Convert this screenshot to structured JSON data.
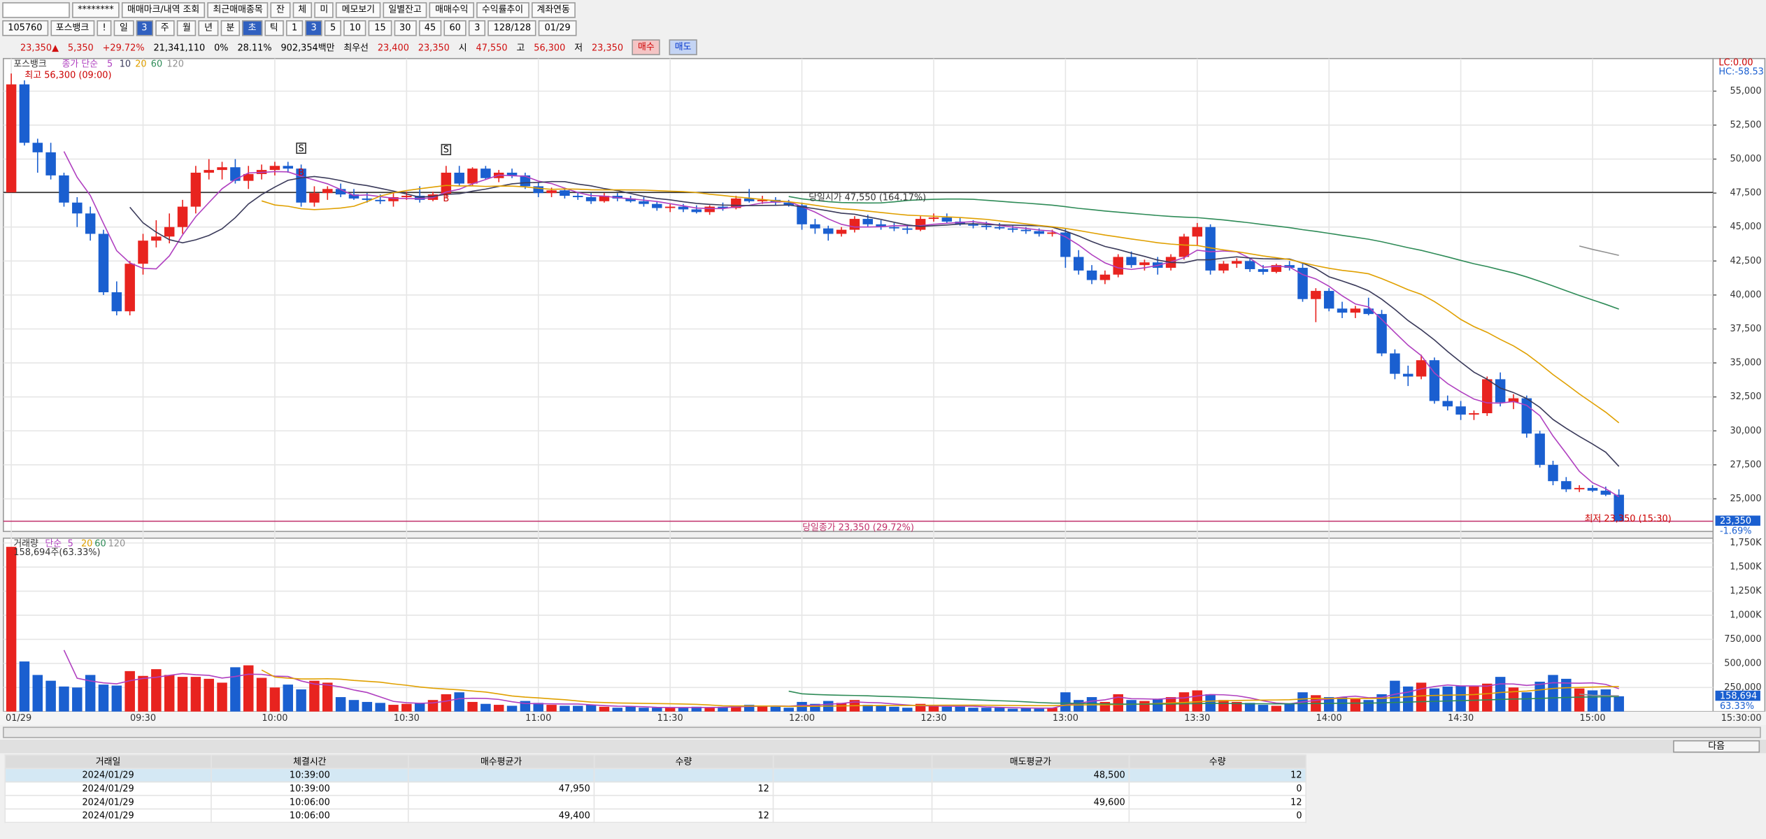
{
  "toolbar": {
    "row1": [
      "********",
      "매매마크/내역 조회",
      "최근매매종목",
      "잔",
      "체",
      "미",
      "메모보기",
      "일별잔고",
      "매매수익",
      "수익률추이",
      "계좌연동"
    ],
    "row2": [
      "105760",
      "포스뱅크",
      "!",
      "일",
      "3",
      "주",
      "월",
      "년",
      "분",
      "초",
      "틱",
      "1",
      "3",
      "5",
      "10",
      "15",
      "30",
      "45",
      "60",
      "3",
      "128/128",
      "01/29"
    ],
    "row2_selected": [
      4,
      9,
      12
    ]
  },
  "info_bar": [
    {
      "text": "23,350▲",
      "color": "#d01010"
    },
    {
      "text": "5,350",
      "color": "#d01010"
    },
    {
      "text": "+29.72%",
      "color": "#d01010"
    },
    {
      "text": "21,341,110",
      "color": "#000000"
    },
    {
      "text": "0%",
      "color": "#000000"
    },
    {
      "text": "28.11%",
      "color": "#000000"
    },
    {
      "text": "902,354백만",
      "color": "#000000"
    },
    {
      "text": "최우선",
      "color": "#000000"
    },
    {
      "text": "23,400",
      "color": "#d01010"
    },
    {
      "text": "23,350",
      "color": "#d01010"
    },
    {
      "text": "시",
      "color": "#000000"
    },
    {
      "text": "47,550",
      "color": "#d01010"
    },
    {
      "text": "고",
      "color": "#000000"
    },
    {
      "text": "56,300",
      "color": "#d01010"
    },
    {
      "text": "저",
      "color": "#000000"
    },
    {
      "text": "23,350",
      "color": "#d01010"
    }
  ],
  "buy_button": "매수",
  "sell_button": "매도",
  "chart_data": {
    "type": "candlestick",
    "name": "포스뱅크",
    "ma_label": "종가 단순",
    "ma": [
      {
        "name": "5",
        "color": "#b040c0"
      },
      {
        "name": "10",
        "color": "#3a3a5a"
      },
      {
        "name": "20",
        "color": "#e0a000"
      },
      {
        "name": "60",
        "color": "#2e8b57"
      },
      {
        "name": "120",
        "color": "#909090"
      }
    ],
    "up_color": "#e8231f",
    "down_color": "#1a5fd0",
    "candles": [
      [
        47550,
        56300,
        47550,
        55500
      ],
      [
        55500,
        55800,
        51000,
        51200
      ],
      [
        51200,
        51500,
        49000,
        50500
      ],
      [
        50500,
        51200,
        48500,
        48800
      ],
      [
        48800,
        49000,
        46500,
        46800
      ],
      [
        46800,
        47200,
        45000,
        46000
      ],
      [
        46000,
        46500,
        44000,
        44500
      ],
      [
        44500,
        44800,
        40000,
        40200
      ],
      [
        40200,
        41000,
        38500,
        38800
      ],
      [
        38800,
        42500,
        38500,
        42300
      ],
      [
        42300,
        44500,
        41500,
        44000
      ],
      [
        44000,
        45500,
        43500,
        44300
      ],
      [
        44300,
        46000,
        43800,
        45000
      ],
      [
        45000,
        47000,
        44500,
        46500
      ],
      [
        46500,
        49500,
        46000,
        49000
      ],
      [
        49000,
        50000,
        48500,
        49200
      ],
      [
        49200,
        49800,
        48500,
        49400
      ],
      [
        49400,
        50000,
        48200,
        48400
      ],
      [
        48400,
        49500,
        47800,
        48900
      ],
      [
        48900,
        49600,
        48500,
        49200
      ],
      [
        49200,
        49800,
        48800,
        49500
      ],
      [
        49500,
        49800,
        49000,
        49300
      ],
      [
        49300,
        49600,
        46500,
        46800
      ],
      [
        46800,
        48000,
        46500,
        47500
      ],
      [
        47500,
        48000,
        47000,
        47800
      ],
      [
        47800,
        48200,
        47200,
        47400
      ],
      [
        47400,
        47800,
        47000,
        47100
      ],
      [
        47100,
        47500,
        46800,
        47000
      ],
      [
        47000,
        47400,
        46700,
        46900
      ],
      [
        46900,
        47500,
        46500,
        47200
      ],
      [
        47200,
        47600,
        47000,
        47300
      ],
      [
        47300,
        48000,
        46800,
        47000
      ],
      [
        47000,
        47600,
        46900,
        47400
      ],
      [
        47400,
        49500,
        47200,
        49000
      ],
      [
        49000,
        49500,
        48000,
        48200
      ],
      [
        48200,
        49400,
        48000,
        49300
      ],
      [
        49300,
        49500,
        48500,
        48600
      ],
      [
        48600,
        49200,
        48300,
        49000
      ],
      [
        49000,
        49300,
        48600,
        48800
      ],
      [
        48800,
        49000,
        47800,
        48000
      ],
      [
        48000,
        48300,
        47200,
        47500
      ],
      [
        47500,
        47900,
        47200,
        47700
      ],
      [
        47700,
        47900,
        47100,
        47300
      ],
      [
        47300,
        47600,
        47000,
        47200
      ],
      [
        47200,
        47500,
        46700,
        46900
      ],
      [
        46900,
        47500,
        46800,
        47300
      ],
      [
        47300,
        47500,
        46900,
        47100
      ],
      [
        47100,
        47300,
        46800,
        46900
      ],
      [
        46900,
        47200,
        46500,
        46700
      ],
      [
        46700,
        46900,
        46200,
        46400
      ],
      [
        46400,
        46700,
        46100,
        46500
      ],
      [
        46500,
        46700,
        46100,
        46300
      ],
      [
        46300,
        46600,
        46000,
        46100
      ],
      [
        46100,
        46600,
        45900,
        46500
      ],
      [
        46500,
        46800,
        46200,
        46400
      ],
      [
        46400,
        47300,
        46300,
        47100
      ],
      [
        47100,
        47800,
        46800,
        46900
      ],
      [
        46900,
        47300,
        46700,
        47000
      ],
      [
        47000,
        47200,
        46600,
        46800
      ],
      [
        46800,
        47000,
        46500,
        46600
      ],
      [
        46600,
        46800,
        44800,
        45200
      ],
      [
        45200,
        45600,
        44500,
        44900
      ],
      [
        44900,
        45100,
        44000,
        44500
      ],
      [
        44500,
        45000,
        44300,
        44800
      ],
      [
        44800,
        45800,
        44600,
        45600
      ],
      [
        45600,
        45900,
        45000,
        45200
      ],
      [
        45200,
        45500,
        44800,
        45000
      ],
      [
        45000,
        45300,
        44700,
        44900
      ],
      [
        44900,
        45200,
        44500,
        44800
      ],
      [
        44800,
        45800,
        44700,
        45600
      ],
      [
        45600,
        46000,
        45400,
        45700
      ],
      [
        45700,
        46000,
        45300,
        45400
      ],
      [
        45400,
        45700,
        45100,
        45200
      ],
      [
        45200,
        45500,
        44900,
        45100
      ],
      [
        45100,
        45400,
        44800,
        45000
      ],
      [
        45000,
        45300,
        44800,
        44900
      ],
      [
        44900,
        45100,
        44600,
        44800
      ],
      [
        44800,
        45000,
        44500,
        44700
      ],
      [
        44700,
        44900,
        44300,
        44500
      ],
      [
        44500,
        44800,
        44300,
        44600
      ],
      [
        44600,
        44900,
        42000,
        42800
      ],
      [
        42800,
        43300,
        41500,
        41800
      ],
      [
        41800,
        42200,
        40800,
        41100
      ],
      [
        41100,
        41800,
        40800,
        41500
      ],
      [
        41500,
        43000,
        41300,
        42800
      ],
      [
        42800,
        43200,
        42000,
        42200
      ],
      [
        42200,
        42600,
        41800,
        42400
      ],
      [
        42400,
        42800,
        41500,
        42000
      ],
      [
        42000,
        43000,
        41800,
        42800
      ],
      [
        42800,
        44500,
        42600,
        44300
      ],
      [
        44300,
        45300,
        43600,
        45000
      ],
      [
        45000,
        45200,
        41500,
        41800
      ],
      [
        41800,
        42500,
        41600,
        42300
      ],
      [
        42300,
        42700,
        42000,
        42500
      ],
      [
        42500,
        42700,
        41700,
        41900
      ],
      [
        41900,
        42200,
        41500,
        41700
      ],
      [
        41700,
        42300,
        41600,
        42200
      ],
      [
        42200,
        42500,
        41800,
        42000
      ],
      [
        42000,
        42300,
        39500,
        39700
      ],
      [
        39700,
        40500,
        38000,
        40300
      ],
      [
        40300,
        40500,
        38800,
        39000
      ],
      [
        39000,
        39500,
        38300,
        38700
      ],
      [
        38700,
        39200,
        38300,
        39000
      ],
      [
        39000,
        39800,
        38500,
        38600
      ],
      [
        38600,
        38900,
        35500,
        35700
      ],
      [
        35700,
        36000,
        33800,
        34200
      ],
      [
        34200,
        34800,
        33300,
        34000
      ],
      [
        34000,
        35600,
        33800,
        35200
      ],
      [
        35200,
        35400,
        32000,
        32200
      ],
      [
        32200,
        32600,
        31500,
        31800
      ],
      [
        31800,
        32200,
        30800,
        31200
      ],
      [
        31200,
        31500,
        30800,
        31300
      ],
      [
        31300,
        34000,
        31100,
        33800
      ],
      [
        33800,
        34300,
        31800,
        32100
      ],
      [
        32100,
        32700,
        31600,
        32400
      ],
      [
        32400,
        32600,
        29500,
        29800
      ],
      [
        29800,
        30000,
        27300,
        27500
      ],
      [
        27500,
        27800,
        26000,
        26300
      ],
      [
        26300,
        26600,
        25500,
        25700
      ],
      [
        25700,
        26000,
        25500,
        25800
      ],
      [
        25800,
        26000,
        25500,
        25600
      ],
      [
        25600,
        25900,
        25200,
        25300
      ],
      [
        25300,
        25700,
        23350,
        23350
      ]
    ],
    "ylim": [
      22600,
      57400
    ],
    "yticks": [
      {
        "value": 25000,
        "label": "25,000"
      },
      {
        "value": 27500,
        "label": "27,500"
      },
      {
        "value": 30000,
        "label": "30,000"
      },
      {
        "value": 32500,
        "label": "32,500"
      },
      {
        "value": 35000,
        "label": "35,000"
      },
      {
        "value": 37500,
        "label": "37,500"
      },
      {
        "value": 40000,
        "label": "40,000"
      },
      {
        "value": 42500,
        "label": "42,500"
      },
      {
        "value": 45000,
        "label": "45,000"
      },
      {
        "value": 47500,
        "label": "47,500"
      },
      {
        "value": 50000,
        "label": "50,000"
      },
      {
        "value": 52500,
        "label": "52,500"
      },
      {
        "value": 55000,
        "label": "55,000"
      }
    ],
    "xticks": [
      "01/29",
      "09:30",
      "10:00",
      "10:30",
      "11:00",
      "11:30",
      "12:00",
      "12:30",
      "13:00",
      "13:30",
      "14:00",
      "14:30",
      "15:00"
    ],
    "x_end_label": "15:30:00",
    "high_label": "최고 56,300 (09:00)",
    "low_label": "최저 23,350 (15:30)",
    "open_label": "당일시가 47,550 (164.17%)",
    "close_label": "당일종가 23,350 (29.72%)",
    "day_open": 47550,
    "day_close": 23350,
    "lc": "LC:0.00",
    "hc": "HC:-58.53",
    "last_price": {
      "value": 23350,
      "label": "23,350"
    },
    "last_change": "-1.69%",
    "trade_marks": [
      [
        "S",
        "B"
      ],
      [
        "S",
        "B"
      ]
    ]
  },
  "volume_data": {
    "type": "bar",
    "name": "거래량",
    "ma_label": "단순",
    "ma": [
      {
        "name": "5",
        "color": "#b040c0"
      },
      {
        "name": "20",
        "color": "#e0a000"
      },
      {
        "name": "60",
        "color": "#2e8b57"
      },
      {
        "name": "120",
        "color": "#909090"
      }
    ],
    "values": [
      1710000,
      520000,
      380000,
      320000,
      260000,
      250000,
      380000,
      280000,
      270000,
      420000,
      370000,
      440000,
      380000,
      360000,
      360000,
      340000,
      300000,
      460000,
      480000,
      350000,
      250000,
      280000,
      230000,
      320000,
      300000,
      150000,
      120000,
      100000,
      90000,
      70000,
      80000,
      90000,
      120000,
      180000,
      200000,
      100000,
      80000,
      70000,
      60000,
      110000,
      90000,
      70000,
      60000,
      60000,
      70000,
      50000,
      40000,
      50000,
      40000,
      40000,
      40000,
      40000,
      50000,
      40000,
      50000,
      60000,
      70000,
      60000,
      50000,
      40000,
      100000,
      80000,
      110000,
      90000,
      120000,
      70000,
      60000,
      50000,
      40000,
      80000,
      60000,
      50000,
      50000,
      40000,
      40000,
      40000,
      30000,
      40000,
      30000,
      40000,
      200000,
      120000,
      150000,
      100000,
      180000,
      120000,
      110000,
      130000,
      150000,
      200000,
      220000,
      180000,
      120000,
      100000,
      90000,
      70000,
      60000,
      80000,
      200000,
      170000,
      150000,
      150000,
      130000,
      120000,
      180000,
      320000,
      260000,
      300000,
      240000,
      260000,
      270000,
      260000,
      290000,
      360000,
      250000,
      200000,
      310000,
      380000,
      340000,
      240000,
      220000,
      230000,
      158694
    ],
    "ylim": [
      0,
      1800000
    ],
    "yticks": [
      {
        "value": 250000,
        "label": "250,000"
      },
      {
        "value": 500000,
        "label": "500,000"
      },
      {
        "value": 750000,
        "label": "750,000"
      },
      {
        "value": 1000000,
        "label": "1,000K"
      },
      {
        "value": 1250000,
        "label": "1,250K"
      },
      {
        "value": 1500000,
        "label": "1,500K"
      },
      {
        "value": 1750000,
        "label": "1,750K"
      }
    ],
    "current_label": "158,694주(63.33%)",
    "last_label": "158,694",
    "last_pct": "63.33%"
  },
  "next_button": "다음",
  "table": {
    "headers": {
      "date": "거래일",
      "time": "체결시간",
      "buy_avg": "매수평균가",
      "buy_qty": "수량",
      "sell_avg": "매도평균가",
      "sell_qty": "수량"
    },
    "rows": [
      {
        "date": "2024/01/29",
        "time": "10:39:00",
        "sell_avg": "48,500",
        "sell_qty": "12"
      },
      {
        "date": "2024/01/29",
        "time": "10:39:00",
        "buy_avg": "47,950",
        "buy_qty": "12",
        "sell_qty": "0"
      },
      {
        "date": "2024/01/29",
        "time": "10:06:00",
        "sell_avg": "49,600",
        "sell_qty": "12"
      },
      {
        "date": "2024/01/29",
        "time": "10:06:00",
        "buy_avg": "49,400",
        "buy_qty": "12",
        "sell_qty": "0"
      }
    ]
  }
}
